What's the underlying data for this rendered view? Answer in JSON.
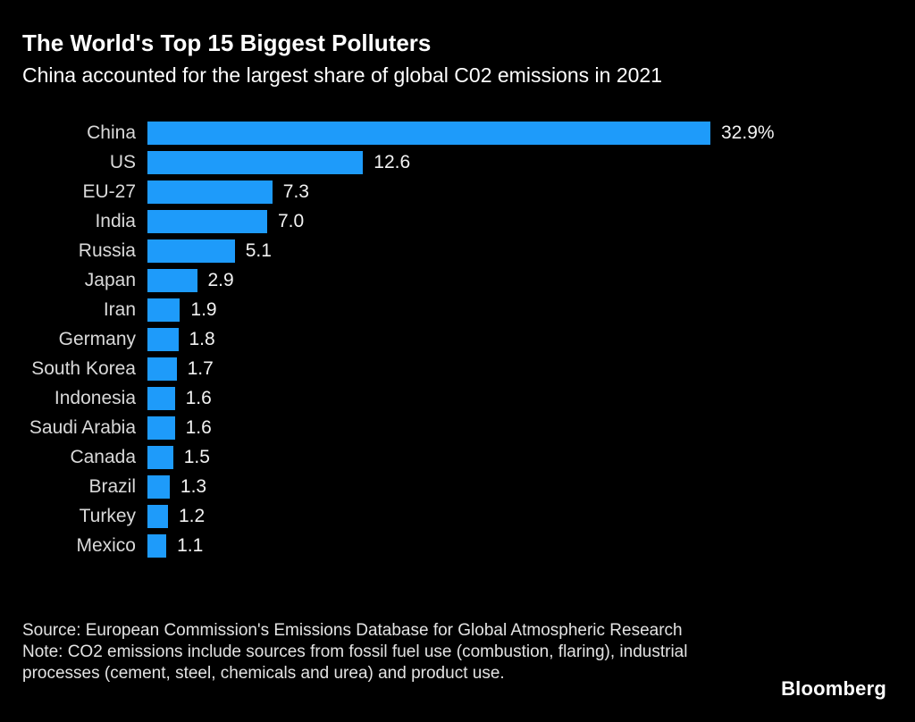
{
  "header": {
    "title": "The World's Top 15 Biggest Polluters",
    "subtitle": "China accounted for the largest share of global C02 emissions in 2021"
  },
  "chart_data": {
    "type": "bar",
    "orientation": "horizontal",
    "title": "The World's Top 15 Biggest Polluters",
    "subtitle": "China accounted for the largest share of global C02 emissions in 2021",
    "categories": [
      "China",
      "US",
      "EU-27",
      "India",
      "Russia",
      "Japan",
      "Iran",
      "Germany",
      "South Korea",
      "Indonesia",
      "Saudi Arabia",
      "Canada",
      "Brazil",
      "Turkey",
      "Mexico"
    ],
    "values": [
      32.9,
      12.6,
      7.3,
      7.0,
      5.1,
      2.9,
      1.9,
      1.8,
      1.7,
      1.6,
      1.6,
      1.5,
      1.3,
      1.2,
      1.1
    ],
    "value_labels": [
      "32.9%",
      "12.6",
      "7.3",
      "7.0",
      "5.1",
      "2.9",
      "1.9",
      "1.8",
      "1.7",
      "1.6",
      "1.6",
      "1.5",
      "1.3",
      "1.2",
      "1.1"
    ],
    "xlim": [
      0,
      34.3
    ],
    "grid": false,
    "legend": false,
    "bar_color": "#1e9bfa"
  },
  "footer": {
    "source": "Source: European Commission's Emissions Database for Global Atmospheric Research",
    "note": "Note: CO2 emissions include sources from fossil fuel use (combustion, flaring), industrial processes (cement, steel, chemicals and urea) and product use.",
    "logo": "Bloomberg"
  },
  "colors": {
    "background": "#000000",
    "bar": "#1e9bfa",
    "title": "#ffffff",
    "label": "#d9d9d9",
    "value": "#f2f2f2",
    "footer": "#e3e3e3"
  }
}
